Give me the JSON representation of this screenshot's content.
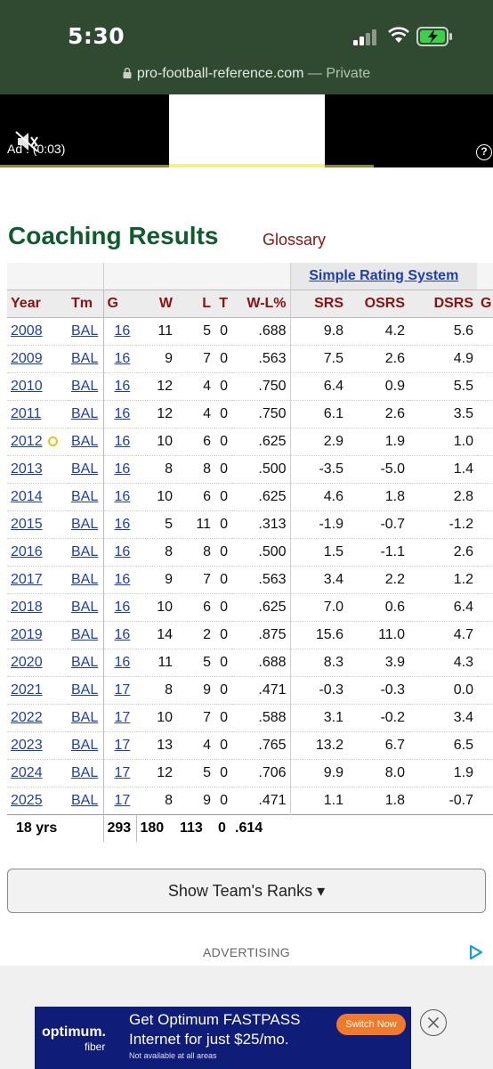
{
  "status_bar": {
    "time": "5:30"
  },
  "browser": {
    "domain": "pro-football-reference.com",
    "mode": " — Private"
  },
  "ad_video": {
    "label": "Ad : (0:03)",
    "help": "?"
  },
  "section": {
    "title": "Coaching Results",
    "glossary": "Glossary"
  },
  "table": {
    "group_header": "Simple Rating System",
    "columns": [
      "Year",
      "Tm",
      "G",
      "W",
      "L",
      "T",
      "W-L%",
      "SRS",
      "OSRS",
      "DSRS",
      "G"
    ],
    "rows": [
      {
        "year": "2008",
        "tm": "BAL",
        "g": "16",
        "w": "11",
        "l": "5",
        "t": "0",
        "pct": ".688",
        "srs": "9.8",
        "osrs": "4.2",
        "dsrs": "5.6"
      },
      {
        "year": "2009",
        "tm": "BAL",
        "g": "16",
        "w": "9",
        "l": "7",
        "t": "0",
        "pct": ".563",
        "srs": "7.5",
        "osrs": "2.6",
        "dsrs": "4.9"
      },
      {
        "year": "2010",
        "tm": "BAL",
        "g": "16",
        "w": "12",
        "l": "4",
        "t": "0",
        "pct": ".750",
        "srs": "6.4",
        "osrs": "0.9",
        "dsrs": "5.5"
      },
      {
        "year": "2011",
        "tm": "BAL",
        "g": "16",
        "w": "12",
        "l": "4",
        "t": "0",
        "pct": ".750",
        "srs": "6.1",
        "osrs": "2.6",
        "dsrs": "3.5"
      },
      {
        "year": "2012",
        "tm": "BAL",
        "g": "16",
        "w": "10",
        "l": "6",
        "t": "0",
        "pct": ".625",
        "srs": "2.9",
        "osrs": "1.9",
        "dsrs": "1.0"
      },
      {
        "year": "2013",
        "tm": "BAL",
        "g": "16",
        "w": "8",
        "l": "8",
        "t": "0",
        "pct": ".500",
        "srs": "-3.5",
        "osrs": "-5.0",
        "dsrs": "1.4"
      },
      {
        "year": "2014",
        "tm": "BAL",
        "g": "16",
        "w": "10",
        "l": "6",
        "t": "0",
        "pct": ".625",
        "srs": "4.6",
        "osrs": "1.8",
        "dsrs": "2.8"
      },
      {
        "year": "2015",
        "tm": "BAL",
        "g": "16",
        "w": "5",
        "l": "11",
        "t": "0",
        "pct": ".313",
        "srs": "-1.9",
        "osrs": "-0.7",
        "dsrs": "-1.2"
      },
      {
        "year": "2016",
        "tm": "BAL",
        "g": "16",
        "w": "8",
        "l": "8",
        "t": "0",
        "pct": ".500",
        "srs": "1.5",
        "osrs": "-1.1",
        "dsrs": "2.6"
      },
      {
        "year": "2017",
        "tm": "BAL",
        "g": "16",
        "w": "9",
        "l": "7",
        "t": "0",
        "pct": ".563",
        "srs": "3.4",
        "osrs": "2.2",
        "dsrs": "1.2"
      },
      {
        "year": "2018",
        "tm": "BAL",
        "g": "16",
        "w": "10",
        "l": "6",
        "t": "0",
        "pct": ".625",
        "srs": "7.0",
        "osrs": "0.6",
        "dsrs": "6.4"
      },
      {
        "year": "2019",
        "tm": "BAL",
        "g": "16",
        "w": "14",
        "l": "2",
        "t": "0",
        "pct": ".875",
        "srs": "15.6",
        "osrs": "11.0",
        "dsrs": "4.7"
      },
      {
        "year": "2020",
        "tm": "BAL",
        "g": "16",
        "w": "11",
        "l": "5",
        "t": "0",
        "pct": ".688",
        "srs": "8.3",
        "osrs": "3.9",
        "dsrs": "4.3"
      },
      {
        "year": "2021",
        "tm": "BAL",
        "g": "17",
        "w": "8",
        "l": "9",
        "t": "0",
        "pct": ".471",
        "srs": "-0.3",
        "osrs": "-0.3",
        "dsrs": "0.0"
      },
      {
        "year": "2022",
        "tm": "BAL",
        "g": "17",
        "w": "10",
        "l": "7",
        "t": "0",
        "pct": ".588",
        "srs": "3.1",
        "osrs": "-0.2",
        "dsrs": "3.4"
      },
      {
        "year": "2023",
        "tm": "BAL",
        "g": "17",
        "w": "13",
        "l": "4",
        "t": "0",
        "pct": ".765",
        "srs": "13.2",
        "osrs": "6.7",
        "dsrs": "6.5"
      },
      {
        "year": "2024",
        "tm": "BAL",
        "g": "17",
        "w": "12",
        "l": "5",
        "t": "0",
        "pct": ".706",
        "srs": "9.9",
        "osrs": "8.0",
        "dsrs": "1.9"
      },
      {
        "year": "2025",
        "tm": "BAL",
        "g": "17",
        "w": "8",
        "l": "9",
        "t": "0",
        "pct": ".471",
        "srs": "1.1",
        "osrs": "1.8",
        "dsrs": "-0.7"
      }
    ],
    "totals": {
      "label": "18 yrs",
      "g": "293",
      "w": "180",
      "l": "113",
      "t": "0",
      "pct": ".614"
    }
  },
  "show_ranks_button": "Show Team's Ranks ▾",
  "advertising": {
    "label": "ADVERTISING",
    "brand": "optimum.",
    "brand_sub": "fiber",
    "line1": "Get Optimum FASTPASS",
    "line2": "Internet for just $25/mo.",
    "line3": "Not available at all areas",
    "cta": "Switch Now"
  },
  "colors": {
    "header_green": "#2f4a31",
    "title_green": "#0e5b2e",
    "link_blue": "#1d3db8",
    "header_red": "#8a1212"
  }
}
